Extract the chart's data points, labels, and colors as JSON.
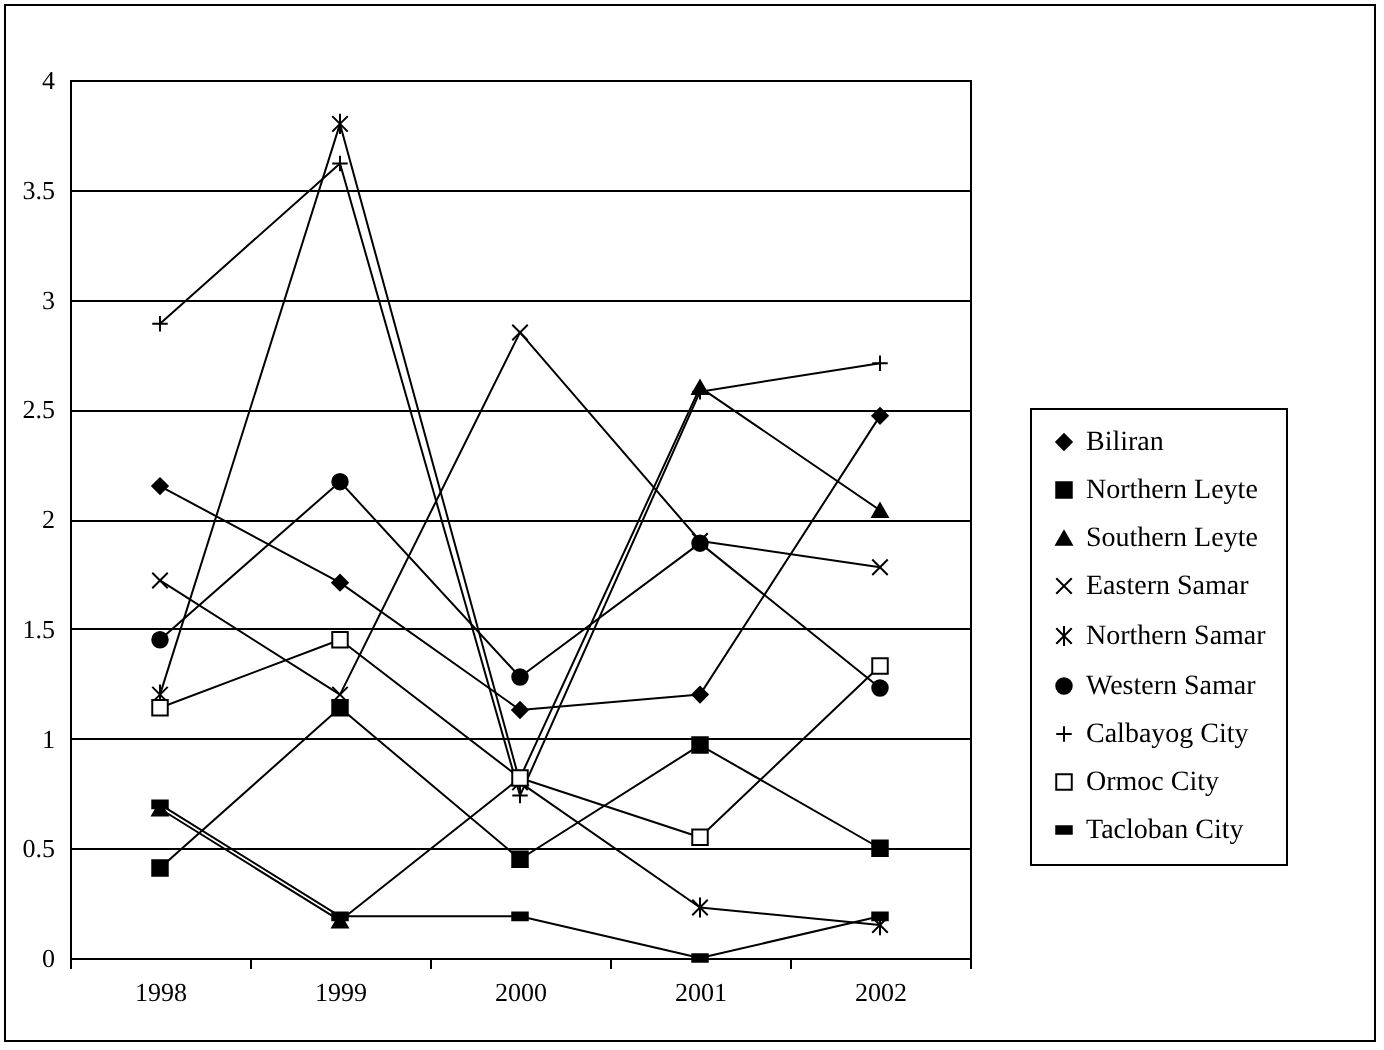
{
  "chart_data": {
    "type": "line",
    "categories": [
      "1998",
      "1999",
      "2000",
      "2001",
      "2002"
    ],
    "series": [
      {
        "name": "Biliran",
        "color": "#000000",
        "marker": "diamond",
        "values": [
          2.15,
          1.71,
          1.13,
          1.2,
          2.47
        ]
      },
      {
        "name": "Northern Leyte",
        "color": "#000000",
        "marker": "square",
        "values": [
          0.41,
          1.14,
          0.45,
          0.97,
          0.5
        ]
      },
      {
        "name": "Southern Leyte",
        "color": "#000000",
        "marker": "triangle",
        "values": [
          0.68,
          0.17,
          0.82,
          2.6,
          2.04
        ]
      },
      {
        "name": "Eastern Samar",
        "color": "#000000",
        "marker": "cross",
        "values": [
          1.72,
          1.2,
          2.85,
          1.9,
          1.78
        ]
      },
      {
        "name": "Northern Samar",
        "color": "#000000",
        "marker": "cross",
        "values": [
          1.2,
          3.8,
          0.8,
          0.23,
          0.15
        ]
      },
      {
        "name": "Western Samar",
        "color": "#000000",
        "marker": "circle",
        "values": [
          1.45,
          2.17,
          1.28,
          1.89,
          1.23
        ]
      },
      {
        "name": "Calbayog City",
        "color": "#000000",
        "marker": "cross",
        "values": [
          2.89,
          3.62,
          0.74,
          2.58,
          2.71
        ]
      },
      {
        "name": "Ormoc City",
        "color": "#000000",
        "marker": "square",
        "values": [
          1.14,
          1.45,
          0.82,
          0.55,
          1.33
        ]
      },
      {
        "name": "Tacloban City",
        "color": "#000000",
        "marker": "square",
        "values": [
          0.7,
          0.19,
          0.19,
          0,
          0.19
        ]
      }
    ],
    "ylim": [
      0,
      4
    ],
    "yticks": [
      0,
      0.5,
      1,
      1.5,
      2,
      2.5,
      3,
      3.5,
      4
    ],
    "grid": "y",
    "legend": "right",
    "line_style": "solid"
  }
}
